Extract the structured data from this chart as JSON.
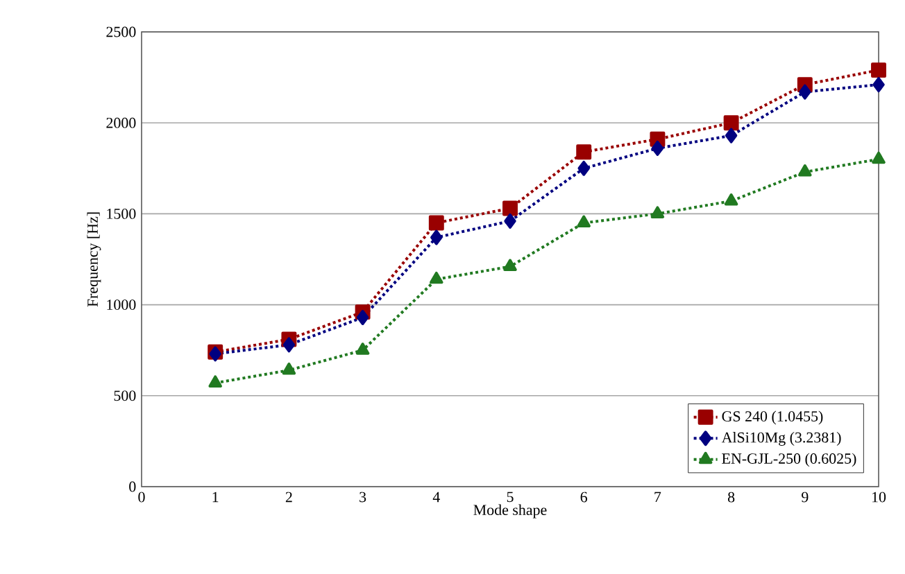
{
  "chart_data": {
    "type": "line",
    "xlabel": "Mode shape",
    "ylabel": "Frequency [Hz]",
    "x": [
      1,
      2,
      3,
      4,
      5,
      6,
      7,
      8,
      9,
      10
    ],
    "xlim": [
      0,
      10
    ],
    "xticks": [
      0,
      1,
      2,
      3,
      4,
      5,
      6,
      7,
      8,
      9,
      10
    ],
    "ylim": [
      0,
      2500
    ],
    "yticks": [
      0,
      500,
      1000,
      1500,
      2000,
      2500
    ],
    "grid": "y",
    "legend": "bottom right",
    "line_style": "dotted",
    "series": [
      {
        "name": "GS 240 (1.0455)",
        "color": "#990000",
        "marker": "square",
        "values": [
          740,
          810,
          960,
          1450,
          1530,
          1840,
          1910,
          2000,
          2210,
          2290
        ]
      },
      {
        "name": "AlSi10Mg (3.2381)",
        "color": "#000080",
        "marker": "diamond",
        "values": [
          730,
          780,
          930,
          1370,
          1460,
          1750,
          1860,
          1930,
          2170,
          2210
        ]
      },
      {
        "name": "EN-GJL-250 (0.6025)",
        "color": "#217a21",
        "marker": "triangle",
        "values": [
          570,
          640,
          750,
          1140,
          1210,
          1450,
          1500,
          1570,
          1730,
          1800
        ]
      }
    ]
  }
}
